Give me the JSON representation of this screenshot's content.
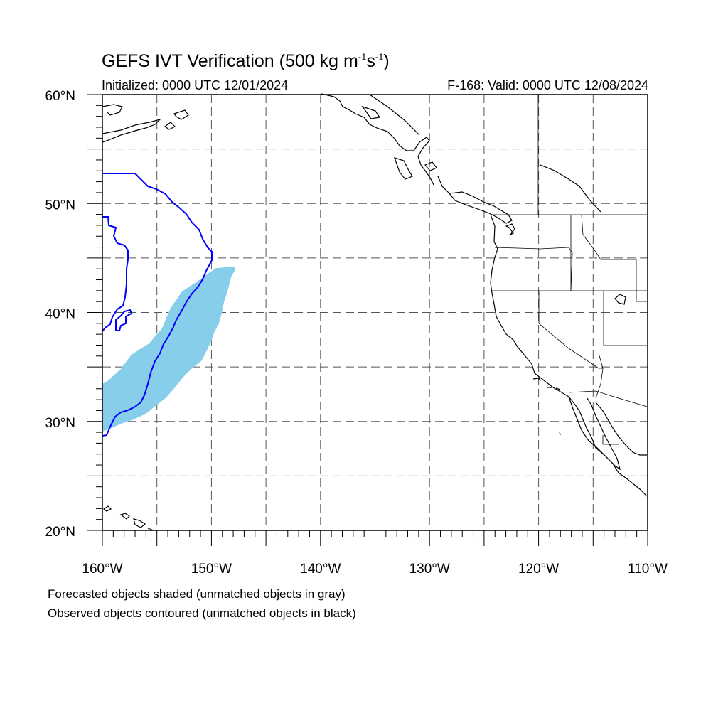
{
  "header": {
    "title_main": "GEFS IVT Verification (500 kg m",
    "title_exp1": "-1",
    "title_mid": "s",
    "title_exp2": "-1",
    "title_end": ")",
    "initialized": "Initialized: 0000 UTC 12/01/2024",
    "valid": "F-168: Valid: 0000 UTC 12/08/2024"
  },
  "map": {
    "lon_range": [
      -160,
      -110
    ],
    "lat_range": [
      20,
      60
    ],
    "gridlines": "dashed every 5°",
    "lat_labels": [
      "20°N",
      "30°N",
      "40°N",
      "50°N",
      "60°N"
    ],
    "lon_labels": [
      "160°W",
      "150°W",
      "140°W",
      "130°W",
      "120°W",
      "110°W"
    ],
    "colors": {
      "forecast_fill": "#87ceeb",
      "observed_contour": "#0000ff",
      "coastline": "#000000",
      "grid": "#555555"
    }
  },
  "legend": {
    "line1": "Forecasted objects shaded (unmatched objects in gray)",
    "line2": "Observed objects contoured (unmatched objects in black)"
  }
}
